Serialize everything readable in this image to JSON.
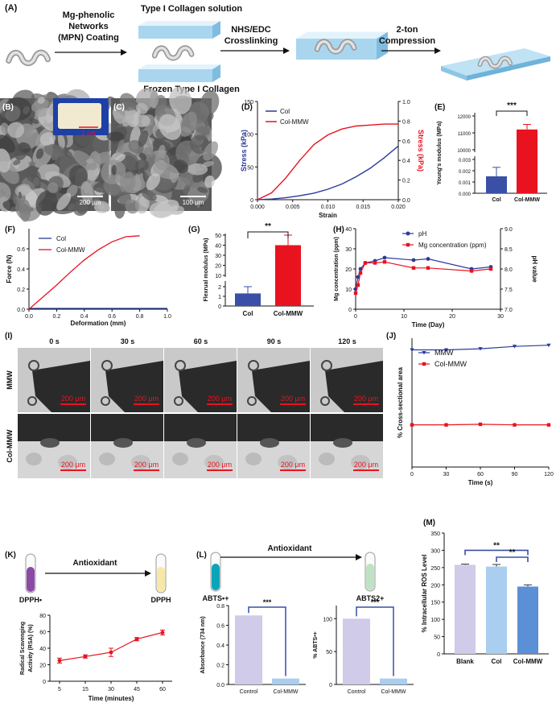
{
  "colors": {
    "blue": "#2b3a9b",
    "red": "#e8131f",
    "purple": "#8a4aa5",
    "cyan": "#0aa5b8",
    "lavender": "#cfcbe8",
    "lightblue": "#a9cef0",
    "midblue": "#5b8fd6",
    "darkblue": "#3a4fa6"
  },
  "panelA": {
    "letter": "(A)",
    "step1": "Mg-phenolic\nNetworks\n(MPN) Coating",
    "sol": "Type I Collagen solution",
    "frozen": "Frozen Type I Collagen",
    "step2": "NHS/EDC\nCrosslinking",
    "step3": "2-ton\nCompression"
  },
  "panelB": {
    "letter": "(B)",
    "inset": "1 cm",
    "scale": "200 μm"
  },
  "panelC": {
    "letter": "(C)",
    "scale": "100 μm"
  },
  "panelI": {
    "letter": "(I)",
    "times": [
      "0 s",
      "30 s",
      "60 s",
      "90 s",
      "120 s"
    ],
    "rows": [
      "MMW",
      "Col-MMW"
    ],
    "scale": "200 μm"
  },
  "panelK": {
    "letter": "(K)",
    "left": "DPPH•",
    "right": "DPPH",
    "arrow": "Antioxidant"
  },
  "panelL": {
    "letter": "(L)",
    "left": "ABTS•+",
    "right": "ABTS2+",
    "arrow": "Antioxidant"
  },
  "chart_data": [
    {
      "id": "D",
      "type": "line",
      "letter": "(D)",
      "xlabel": "Strain",
      "ylabel": "Stress (kPa)",
      "y2label": "Stress (kPa)",
      "xlim": [
        0,
        0.02
      ],
      "ylim": [
        0,
        150
      ],
      "y2lim": [
        0,
        1.0
      ],
      "xticks": [
        "0.000",
        "0.005",
        "0.010",
        "0.015",
        "0.020"
      ],
      "yticks": [
        "0",
        "50",
        "100",
        "150"
      ],
      "y2ticks": [
        "0.0",
        "0.2",
        "0.4",
        "0.6",
        "0.8",
        "1.0"
      ],
      "series": [
        {
          "name": "Col",
          "axis": "left",
          "x": [
            0,
            0.002,
            0.004,
            0.006,
            0.008,
            0.01,
            0.012,
            0.014,
            0.016,
            0.018,
            0.02
          ],
          "y": [
            0,
            1,
            3,
            6,
            10,
            16,
            24,
            35,
            48,
            64,
            82
          ]
        },
        {
          "name": "Col-MMW",
          "axis": "right",
          "x": [
            0,
            0.002,
            0.004,
            0.006,
            0.008,
            0.01,
            0.012,
            0.014,
            0.016,
            0.018,
            0.02
          ],
          "y": [
            0,
            0.07,
            0.22,
            0.4,
            0.56,
            0.66,
            0.72,
            0.75,
            0.76,
            0.77,
            0.77
          ]
        }
      ]
    },
    {
      "id": "E",
      "type": "bar",
      "letter": "(E)",
      "ylabel": "Young's modulus (MPa)",
      "categories": [
        "Col",
        "Col-MMW"
      ],
      "values": [
        0.0015,
        11200
      ],
      "errors": [
        0.0008,
        300
      ],
      "yticks_low": [
        "0.000",
        "0.001",
        "0.002",
        "0.003"
      ],
      "yticks_high": [
        "10000",
        "11000",
        "12000"
      ],
      "significance": "***"
    },
    {
      "id": "F",
      "type": "line",
      "letter": "(F)",
      "xlabel": "Deformation (mm)",
      "ylabel": "Force (N)",
      "xlim": [
        0,
        1.0
      ],
      "ylim": [
        0,
        0.8
      ],
      "xticks": [
        "0.0",
        "0.2",
        "0.4",
        "0.6",
        "0.8",
        "1.0"
      ],
      "yticks": [
        "0.0",
        "0.2",
        "0.4",
        "0.6"
      ],
      "series": [
        {
          "name": "Col",
          "x": [
            0,
            0.1,
            0.2,
            0.3,
            0.4,
            0.5,
            0.6,
            0.7,
            0.8,
            0.9,
            1.0
          ],
          "y": [
            0,
            0,
            0,
            0,
            0,
            0,
            0,
            0,
            0,
            0,
            0
          ]
        },
        {
          "name": "Col-MMW",
          "x": [
            0,
            0.1,
            0.2,
            0.3,
            0.4,
            0.5,
            0.6,
            0.7,
            0.8
          ],
          "y": [
            0,
            0.12,
            0.24,
            0.37,
            0.49,
            0.59,
            0.67,
            0.72,
            0.73
          ]
        }
      ]
    },
    {
      "id": "G",
      "type": "bar",
      "letter": "(G)",
      "ylabel": "Flexrual modulus (MPa)",
      "categories": [
        "Col",
        "Col-MMW"
      ],
      "values": [
        1.3,
        40
      ],
      "errors": [
        0.7,
        10
      ],
      "yticks_low": [
        "0",
        "1",
        "2"
      ],
      "yticks_high": [
        "10",
        "20",
        "30",
        "40",
        "50"
      ],
      "significance": "**"
    },
    {
      "id": "H",
      "type": "line",
      "letter": "(H)",
      "xlabel": "Time (Day)",
      "ylabel": "Mg concentration (ppm)",
      "y2label": "pH value",
      "xlim": [
        0,
        30
      ],
      "ylim": [
        0,
        40
      ],
      "y2lim": [
        7.0,
        9.0
      ],
      "xticks": [
        "0",
        "10",
        "20",
        "30"
      ],
      "yticks": [
        "0",
        "10",
        "20",
        "30",
        "40"
      ],
      "y2ticks": [
        "7.0",
        "7.5",
        "8.0",
        "8.5",
        "9.0"
      ],
      "series": [
        {
          "name": "pH",
          "axis": "right",
          "x": [
            0,
            0.5,
            1,
            2,
            4,
            6,
            12,
            15,
            24,
            28
          ],
          "y": [
            7.5,
            7.8,
            8.0,
            8.15,
            8.2,
            8.28,
            8.22,
            8.25,
            8.0,
            8.05
          ]
        },
        {
          "name": "Mg concentration (ppm)",
          "axis": "left",
          "x": [
            0,
            0.5,
            1,
            2,
            4,
            6,
            12,
            15,
            24,
            28
          ],
          "y": [
            8,
            12,
            18,
            23,
            23,
            23.5,
            20.5,
            20.5,
            19,
            20
          ]
        }
      ]
    },
    {
      "id": "J",
      "type": "line",
      "letter": "(J)",
      "xlabel": "Time (s)",
      "ylabel": "% Cross-sectional area",
      "xlim": [
        0,
        120
      ],
      "ylim": [
        0,
        110
      ],
      "xticks": [
        "0",
        "30",
        "60",
        "90",
        "120"
      ],
      "series": [
        {
          "name": "MMW",
          "x": [
            0,
            30,
            60,
            90,
            120
          ],
          "y": [
            100,
            100,
            101,
            103,
            104
          ]
        },
        {
          "name": "Col-MMW",
          "x": [
            0,
            30,
            60,
            90,
            120
          ],
          "y": [
            36,
            36,
            36.5,
            36,
            36
          ]
        }
      ]
    },
    {
      "id": "K",
      "type": "line",
      "xlabel": "Time (minutes)",
      "ylabel": "Radical Scavenging\nActivity (RSA) (%)",
      "categories": [
        "5",
        "15",
        "30",
        "45",
        "60"
      ],
      "values": [
        25,
        30,
        35,
        51,
        59
      ],
      "errors": [
        3,
        2,
        5,
        2,
        3
      ],
      "ylim": [
        0,
        80
      ],
      "yticks": [
        "0",
        "20",
        "40",
        "60",
        "80"
      ]
    },
    {
      "id": "L1",
      "type": "bar",
      "ylabel": "Absorbance (734 nm)",
      "categories": [
        "Control",
        "Col-MMW"
      ],
      "values": [
        0.7,
        0.06
      ],
      "errors": [
        0.005,
        0.005
      ],
      "ylim": [
        0,
        0.8
      ],
      "yticks": [
        "0.0",
        "0.2",
        "0.4",
        "0.6",
        "0.8"
      ],
      "significance": "***"
    },
    {
      "id": "L2",
      "type": "bar",
      "ylabel": "% ABTS•+",
      "categories": [
        "Control",
        "Col-MMW"
      ],
      "values": [
        100,
        9
      ],
      "errors": [
        0.5,
        0.5
      ],
      "ylim": [
        0,
        120
      ],
      "yticks": [
        "0",
        "50",
        "100"
      ],
      "significance": "***"
    },
    {
      "id": "M",
      "type": "bar",
      "letter": "(M)",
      "ylabel": "% Intracellular ROS Level",
      "categories": [
        "Blank",
        "Col",
        "Col-MMW"
      ],
      "values": [
        258,
        253,
        195
      ],
      "errors": [
        2,
        6,
        5
      ],
      "ylim": [
        0,
        350
      ],
      "yticks": [
        "0",
        "50",
        "100",
        "150",
        "200",
        "250",
        "300",
        "350"
      ],
      "significance": [
        "**",
        "**"
      ]
    }
  ]
}
